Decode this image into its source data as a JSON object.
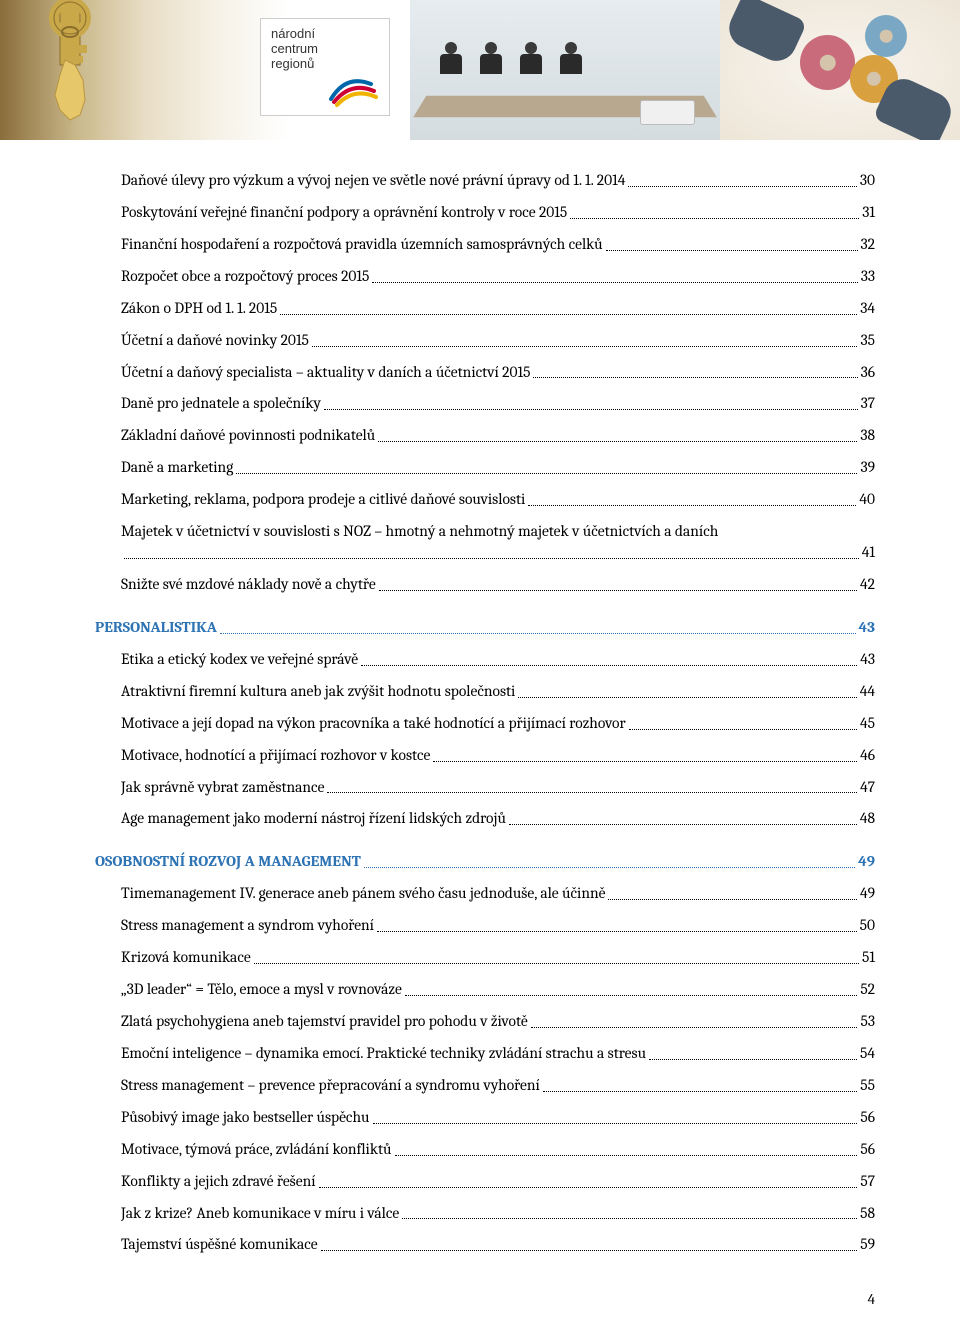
{
  "banner": {
    "logo_text": [
      "národní",
      "centrum",
      "regionů"
    ],
    "logo_swirl_colors": [
      "#0066aa",
      "#cc0033",
      "#f0b400"
    ]
  },
  "colors": {
    "heading": "#2e74b5",
    "text": "#000000",
    "dots": "#000000"
  },
  "toc": [
    {
      "title": "Daňové úlevy pro výzkum a vývoj nejen ve světle nové právní úpravy od 1. 1. 2014",
      "page": "30",
      "indent": true
    },
    {
      "title": "Poskytování veřejné finanční podpory a oprávnění kontroly v roce 2015",
      "page": "31",
      "indent": true
    },
    {
      "title": "Finanční hospodaření a rozpočtová pravidla územních samosprávných celků",
      "page": "32",
      "indent": true
    },
    {
      "title": "Rozpočet obce a rozpočtový proces 2015",
      "page": "33",
      "indent": true
    },
    {
      "title": "Zákon o DPH od 1. 1. 2015",
      "page": "34",
      "indent": true
    },
    {
      "title": "Účetní a daňové novinky 2015",
      "page": "35",
      "indent": true
    },
    {
      "title": "Účetní a daňový specialista – aktuality v daních a účetnictví 2015",
      "page": "36",
      "indent": true
    },
    {
      "title": "Daně pro jednatele a společníky",
      "page": "37",
      "indent": true
    },
    {
      "title": "Základní daňové povinnosti podnikatelů",
      "page": "38",
      "indent": true
    },
    {
      "title": "Daně a marketing",
      "page": "39",
      "indent": true
    },
    {
      "title": "Marketing, reklama, podpora prodeje a citlivé daňové souvislosti",
      "page": "40",
      "indent": true
    },
    {
      "title": "Majetek v účetnictví v souvislosti s NOZ – hmotný a nehmotný majetek v účetnictvích a daních",
      "page": "41",
      "indent": true,
      "wrap": true
    },
    {
      "title": "Snižte své mzdové náklady nově a chytře",
      "page": "42",
      "indent": true
    },
    {
      "title": "PERSONALISTIKA",
      "page": "43",
      "heading": true,
      "topGap": true
    },
    {
      "title": "Etika a etický kodex ve veřejné správě",
      "page": "43",
      "indent": true
    },
    {
      "title": "Atraktivní firemní kultura aneb jak zvýšit hodnotu společnosti",
      "page": "44",
      "indent": true
    },
    {
      "title": "Motivace a její dopad na výkon pracovníka a také hodnotící a přijímací rozhovor",
      "page": "45",
      "indent": true
    },
    {
      "title": "Motivace, hodnotící a přijímací rozhovor v kostce",
      "page": "46",
      "indent": true
    },
    {
      "title": "Jak správně vybrat zaměstnance",
      "page": "47",
      "indent": true
    },
    {
      "title": "Age management jako moderní nástroj řízení lidských zdrojů",
      "page": "48",
      "indent": true
    },
    {
      "title": "OSOBNOSTNÍ ROZVOJ A MANAGEMENT",
      "page": "49",
      "heading": true,
      "topGap": true
    },
    {
      "title": "Timemanagement IV. generace aneb pánem svého času jednoduše, ale účinně",
      "page": "49",
      "indent": true
    },
    {
      "title": "Stress management a syndrom vyhoření",
      "page": "50",
      "indent": true
    },
    {
      "title": "Krizová komunikace",
      "page": "51",
      "indent": true
    },
    {
      "title": "„3D leader“ = Tělo, emoce a mysl v rovnováze",
      "page": "52",
      "indent": true
    },
    {
      "title": "Zlatá psychohygiena aneb tajemství pravidel pro pohodu v životě",
      "page": "53",
      "indent": true
    },
    {
      "title": "Emoční inteligence – dynamika emocí. Praktické techniky zvládání strachu a stresu",
      "page": "54",
      "indent": true
    },
    {
      "title": "Stress management – prevence přepracování a syndromu vyhoření",
      "page": "55",
      "indent": true
    },
    {
      "title": "Působivý image jako bestseller úspěchu",
      "page": "56",
      "indent": true
    },
    {
      "title": "Motivace, týmová práce, zvládání konfliktů",
      "page": "56",
      "indent": true
    },
    {
      "title": "Konflikty a jejich zdravé řešení",
      "page": "57",
      "indent": true
    },
    {
      "title": "Jak z krize? Aneb komunikace v míru i válce",
      "page": "58",
      "indent": true
    },
    {
      "title": "Tajemství úspěšné komunikace",
      "page": "59",
      "indent": true
    }
  ],
  "page_number": "4"
}
